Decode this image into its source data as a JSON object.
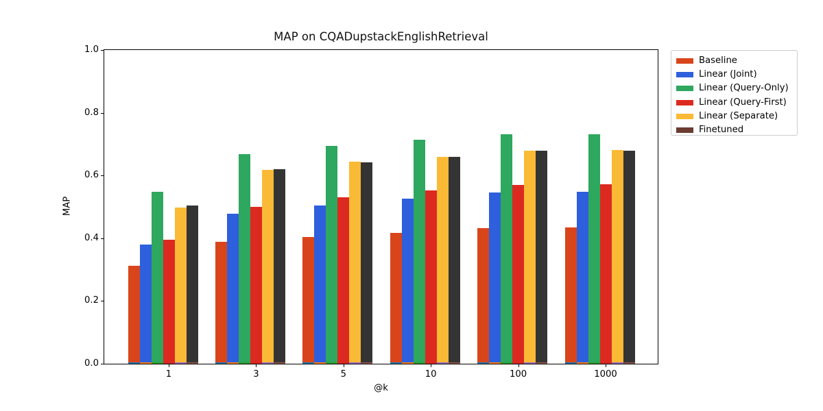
{
  "chart_data": {
    "type": "bar",
    "title": "MAP on CQADupstackEnglishRetrieval",
    "xlabel": "@k",
    "ylabel": "MAP",
    "ylim": [
      0.0,
      1.0
    ],
    "ytick_labels": [
      "0.0",
      "0.2",
      "0.4",
      "0.6",
      "0.8",
      "1.0"
    ],
    "categories": [
      "1",
      "3",
      "5",
      "10",
      "100",
      "1000"
    ],
    "grid": false,
    "legend_position": "outside-top-right",
    "series": [
      {
        "name": "Baseline",
        "color": "#d9451a",
        "values": [
          0.312,
          0.388,
          0.405,
          0.417,
          0.432,
          0.434
        ]
      },
      {
        "name": "Linear (Joint)",
        "color": "#2e5fdc",
        "values": [
          0.38,
          0.478,
          0.504,
          0.526,
          0.545,
          0.548
        ]
      },
      {
        "name": "Linear (Query-Only)",
        "color": "#2ea75f",
        "values": [
          0.547,
          0.668,
          0.695,
          0.715,
          0.732,
          0.732
        ]
      },
      {
        "name": "Linear (Query-First)",
        "color": "#dc2a20",
        "values": [
          0.395,
          0.5,
          0.531,
          0.552,
          0.569,
          0.572
        ]
      },
      {
        "name": "Linear (Separate)",
        "color": "#fbba35",
        "values": [
          0.498,
          0.617,
          0.644,
          0.659,
          0.679,
          0.681
        ]
      },
      {
        "name": "Finetuned",
        "color": "#343434",
        "legend_color": "#6c3b32",
        "values": [
          0.504,
          0.62,
          0.643,
          0.659,
          0.679,
          0.679
        ]
      }
    ],
    "base_strip_colors": [
      "#1f77b4",
      "#ff7f0e",
      "#2ca02c",
      "#d62728",
      "#9467bd",
      "#8c564b"
    ],
    "base_strip_value": 0.005
  }
}
